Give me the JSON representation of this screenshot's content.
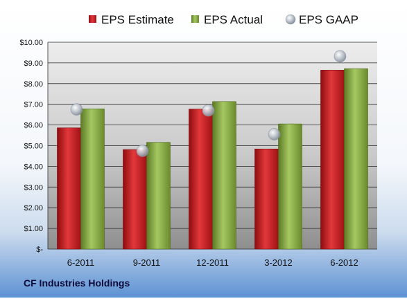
{
  "company": "CF Industries Holdings",
  "chart_data": {
    "type": "bar",
    "title": "",
    "xlabel": "",
    "ylabel": "",
    "categories": [
      "6-2011",
      "9-2011",
      "12-2011",
      "3-2012",
      "6-2012"
    ],
    "series": [
      {
        "name": "EPS Estimate",
        "type": "bar",
        "color": "#c0181c",
        "values": [
          5.86,
          4.81,
          6.77,
          4.84,
          8.65
        ]
      },
      {
        "name": "EPS Actual",
        "type": "bar",
        "color": "#7fa23a",
        "values": [
          6.78,
          5.16,
          7.13,
          6.05,
          8.72
        ]
      },
      {
        "name": "EPS GAAP",
        "type": "scatter",
        "color": "#a9b2bd",
        "values": [
          6.75,
          4.75,
          6.7,
          5.55,
          9.32
        ]
      }
    ],
    "ylim": [
      0,
      10
    ],
    "yticks": [
      0,
      1,
      2,
      3,
      4,
      5,
      6,
      7,
      8,
      9,
      10
    ],
    "ytick_labels": [
      "$-",
      "$1.00",
      "$2.00",
      "$3.00",
      "$4.00",
      "$5.00",
      "$6.00",
      "$7.00",
      "$8.00",
      "$9.00",
      "$10.00"
    ],
    "grid": true,
    "legend_position": "top"
  }
}
